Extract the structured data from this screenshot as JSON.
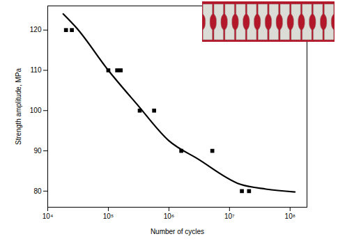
{
  "chart_data": {
    "type": "scatter",
    "x_label": "Number of cycles",
    "y_label": "Strength amplitude, MPa",
    "log": "x",
    "grid": false,
    "xlim": [
      10000,
      190000000
    ],
    "ylim": [
      76,
      126
    ],
    "xticks": [
      {
        "value": 10000,
        "label": "10⁴"
      },
      {
        "value": 100000,
        "label": "10⁵"
      },
      {
        "value": 1000000,
        "label": "10⁶"
      },
      {
        "value": 10000000,
        "label": "10⁷"
      },
      {
        "value": 100000000,
        "label": "10⁸"
      }
    ],
    "yticks": [
      80,
      90,
      100,
      110,
      120
    ],
    "series": [
      {
        "type": "scatter",
        "marker": "square",
        "color": "#000000",
        "x": [
          20000,
          25000,
          100000,
          140000,
          160000,
          330000,
          570000,
          1600000,
          5200000,
          16000000,
          21000000
        ],
        "values": [
          120,
          120,
          110,
          110,
          110,
          100,
          100,
          90,
          90,
          80,
          80
        ]
      },
      {
        "type": "line",
        "line_style": "solid",
        "color": "#000000",
        "x": [
          18000,
          30000,
          100000,
          300000,
          1000000,
          3000000,
          15000000,
          40000000,
          120000000
        ],
        "values": [
          124,
          120.5,
          110,
          101.5,
          92.5,
          88,
          81.7,
          80.5,
          79.8
        ]
      }
    ]
  }
}
